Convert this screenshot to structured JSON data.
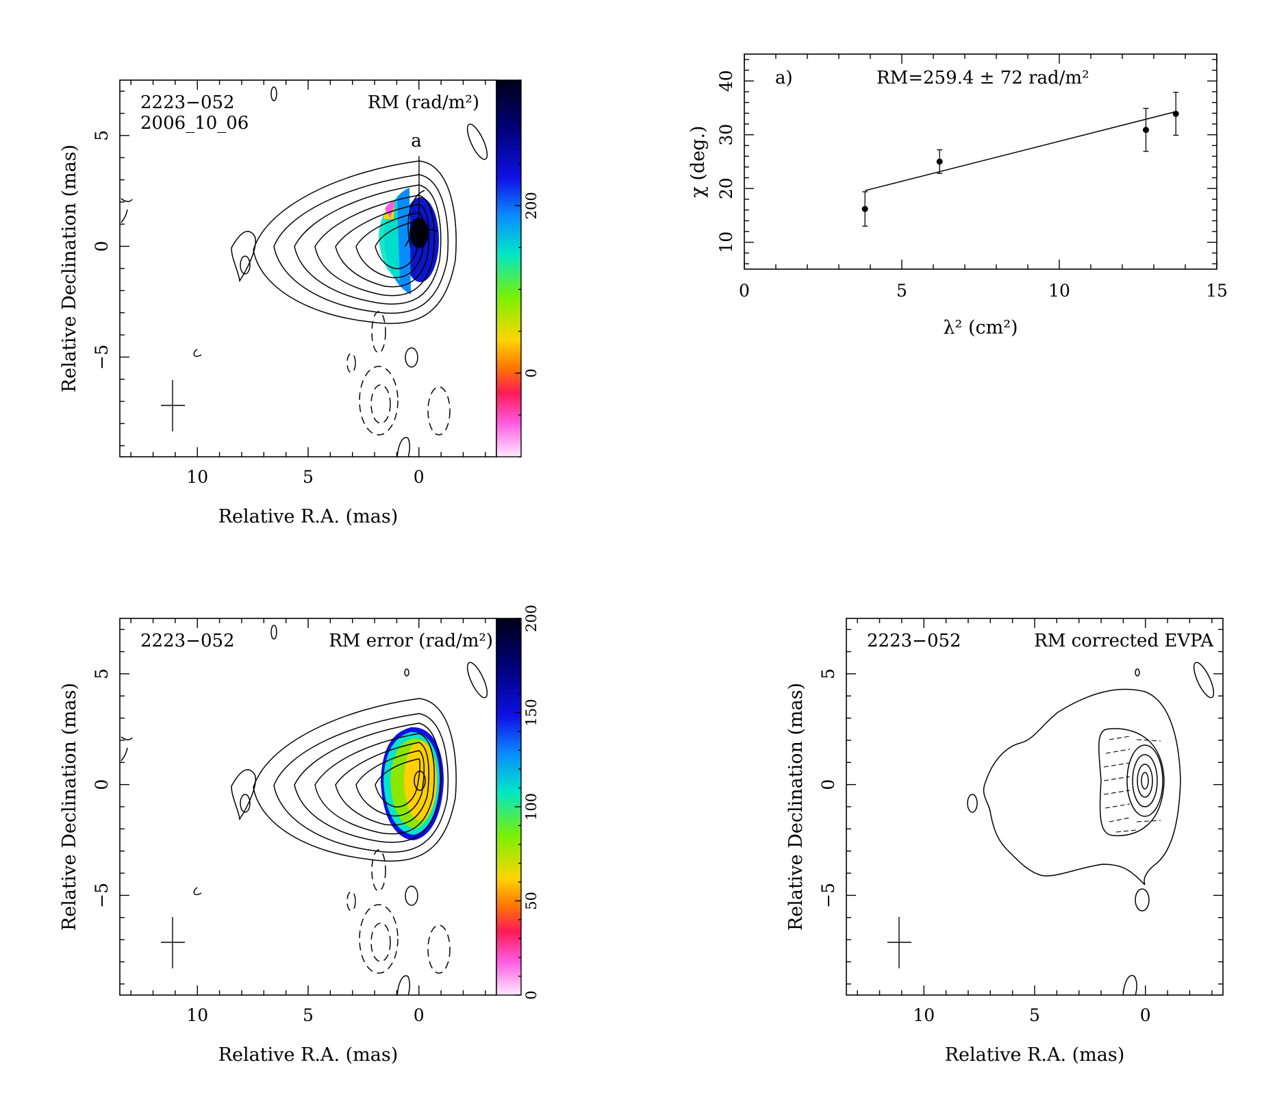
{
  "chart_data": [
    {
      "type": "heatmap",
      "panel": "rm-map",
      "source": "2223−052",
      "date": "2006_10_06",
      "title": "RM (rad/m²)",
      "cut_label": "a",
      "xlabel": "Relative R.A. (mas)",
      "ylabel": "Relative Declination (mas)",
      "xlim": [
        13.5,
        -3.5
      ],
      "ylim": [
        -9.5,
        7.5
      ],
      "xticks": [
        10,
        5,
        0
      ],
      "yticks": [
        5,
        0,
        -5
      ],
      "colorbar": {
        "range": [
          -100,
          350
        ],
        "ticks": [
          0,
          200
        ]
      },
      "values": {
        "core_rm_peak": 300,
        "edge_rm": 20
      }
    },
    {
      "type": "line",
      "panel": "rm-fit",
      "label": "a)",
      "fit_text": "RM=259.4 ± 72 rad/m²",
      "xlabel": "λ² (cm²)",
      "ylabel": "χ (deg.)",
      "xlim": [
        0,
        15
      ],
      "ylim": [
        5,
        45
      ],
      "xticks": [
        0,
        5,
        10,
        15
      ],
      "yticks": [
        10,
        20,
        30,
        40
      ],
      "series": [
        {
          "points": [
            {
              "x": 3.83,
              "y": 16.2,
              "err": 3.2
            },
            {
              "x": 6.2,
              "y": 25.0,
              "err": 2.2
            },
            {
              "x": 12.75,
              "y": 30.9,
              "err": 4.0
            },
            {
              "x": 13.7,
              "y": 33.9,
              "err": 4.0
            }
          ]
        }
      ],
      "fit_line": [
        {
          "x": 3.83,
          "y": 19.6
        },
        {
          "x": 13.7,
          "y": 34.3
        }
      ]
    },
    {
      "type": "heatmap",
      "panel": "rm-error-map",
      "source": "2223−052",
      "title": "RM error (rad/m²)",
      "xlabel": "Relative R.A. (mas)",
      "ylabel": "Relative Declination (mas)",
      "xlim": [
        13.5,
        -3.5
      ],
      "ylim": [
        -9.5,
        7.5
      ],
      "xticks": [
        10,
        5,
        0
      ],
      "yticks": [
        5,
        0,
        -5
      ],
      "colorbar": {
        "range": [
          0,
          200
        ],
        "ticks": [
          0,
          50,
          100,
          150,
          200
        ]
      },
      "values": {
        "core_error": 70,
        "edge_error": 150
      }
    },
    {
      "type": "heatmap",
      "panel": "evpa-map",
      "source": "2223−052",
      "title": "RM corrected EVPA",
      "xlabel": "Relative R.A. (mas)",
      "ylabel": "Relative Declination (mas)",
      "xlim": [
        13.5,
        -3.5
      ],
      "ylim": [
        -9.5,
        7.5
      ],
      "xticks": [
        10,
        5,
        0
      ],
      "yticks": [
        5,
        0,
        -5
      ]
    }
  ],
  "colors": {
    "rm_scale": [
      "#ffe8ff",
      "#ff5ae0",
      "#ff1a55",
      "#ff7a00",
      "#ffd400",
      "#7ef000",
      "#00e6c8",
      "#0a8cff",
      "#1010e6",
      "#00007a",
      "#000018"
    ],
    "err_scale": [
      "#ffe8ff",
      "#ff5ae0",
      "#ff1a55",
      "#ff7a00",
      "#ffd400",
      "#7ef000",
      "#00e6c8",
      "#0a8cff",
      "#1010e6",
      "#00007a",
      "#000018"
    ],
    "core_rm": "#0c16c8",
    "core_err": "#ffd000"
  }
}
